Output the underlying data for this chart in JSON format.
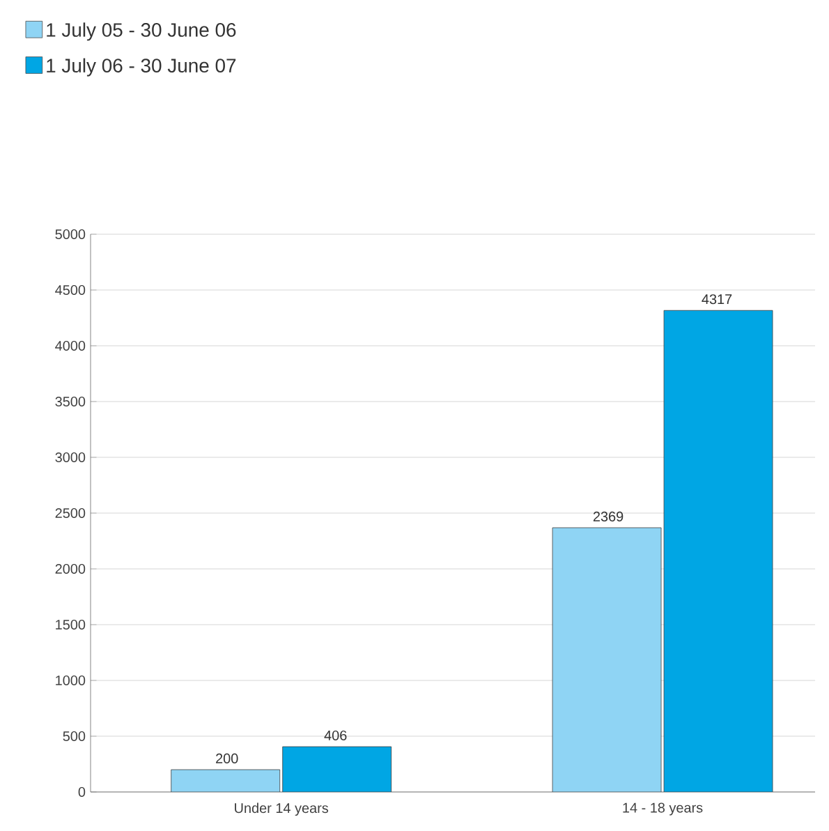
{
  "chart_data": {
    "type": "bar",
    "categories": [
      "Under 14 years",
      "14 - 18 years"
    ],
    "series": [
      {
        "name": "1 July 05 - 30 June 06",
        "color": "#8fd4f4",
        "values": [
          200,
          2369
        ]
      },
      {
        "name": "1 July 06 - 30 June 07",
        "color": "#00a6e4",
        "values": [
          406,
          4317
        ]
      }
    ],
    "ylim": [
      0,
      5000
    ],
    "yticks": [
      0,
      500,
      1000,
      1500,
      2000,
      2500,
      3000,
      3500,
      4000,
      4500,
      5000
    ],
    "grid": "y",
    "legend": "top left",
    "data_labels": true
  }
}
